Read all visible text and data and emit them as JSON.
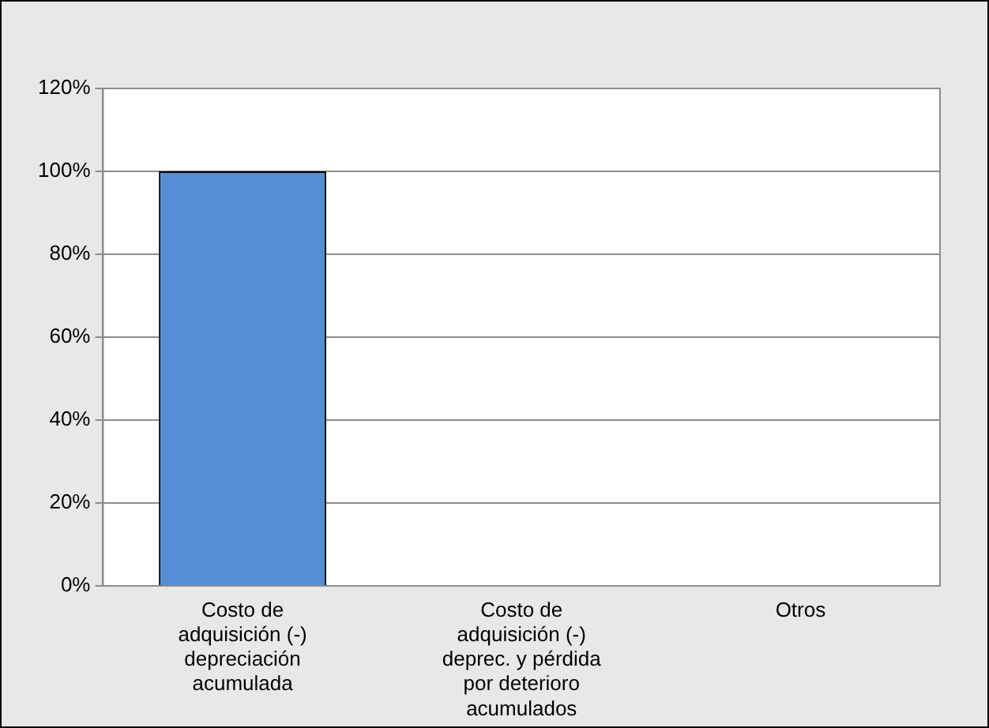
{
  "chart_data": {
    "type": "bar",
    "categories": [
      "Costo de adquisición (-) depreciación acumulada",
      "Costo de adquisición (-) deprec. y pérdida por deterioro acumulados",
      "Otros"
    ],
    "values": [
      100,
      0,
      0
    ],
    "color": "#558ed5",
    "ylim": [
      0,
      120
    ],
    "yticks": [
      {
        "value": 0,
        "label": "0%"
      },
      {
        "value": 20,
        "label": "20%"
      },
      {
        "value": 40,
        "label": "40%"
      },
      {
        "value": 60,
        "label": "60%"
      },
      {
        "value": 80,
        "label": "80%"
      },
      {
        "value": 100,
        "label": "100%"
      },
      {
        "value": 120,
        "label": "120%"
      }
    ],
    "grid": "y",
    "legend": false
  }
}
